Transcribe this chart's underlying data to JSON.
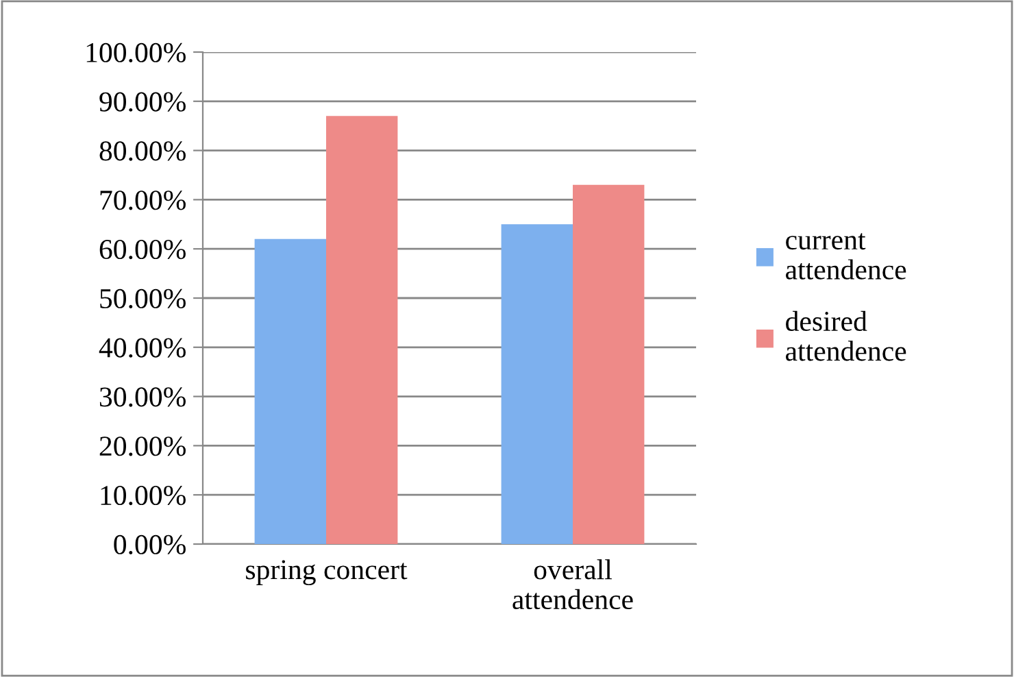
{
  "chart_data": {
    "type": "bar",
    "categories": [
      "spring concert",
      "overall attendence"
    ],
    "series": [
      {
        "name": "current attendence",
        "color": "#7db0ee",
        "values": [
          62,
          65
        ]
      },
      {
        "name": "desired attendence",
        "color": "#ee8a88",
        "values": [
          87,
          73
        ]
      }
    ],
    "ylim": [
      0,
      100
    ],
    "yticks": [
      {
        "value": 0,
        "label": "0.00%"
      },
      {
        "value": 10,
        "label": "10.00%"
      },
      {
        "value": 20,
        "label": "20.00%"
      },
      {
        "value": 30,
        "label": "30.00%"
      },
      {
        "value": 40,
        "label": "40.00%"
      },
      {
        "value": 50,
        "label": "50.00%"
      },
      {
        "value": 60,
        "label": "60.00%"
      },
      {
        "value": 70,
        "label": "70.00%"
      },
      {
        "value": 80,
        "label": "80.00%"
      },
      {
        "value": 90,
        "label": "90.00%"
      },
      {
        "value": 100,
        "label": "100.00%"
      }
    ],
    "grid": "y",
    "legend": "right"
  }
}
